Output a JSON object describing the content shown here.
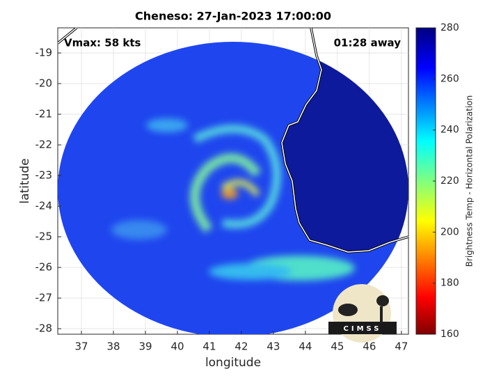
{
  "chart_data": {
    "type": "map",
    "title": "Cheneso: 27-Jan-2023 17:00:00",
    "xlabel": "longitude",
    "ylabel": "latitude",
    "annotations": [
      "Vmax: 58 kts",
      "01:28 away"
    ],
    "logo_text": "CIMSS",
    "xlim": [
      36.26,
      47.22
    ],
    "xticks": [
      37,
      38,
      39,
      40,
      41,
      42,
      43,
      44,
      45,
      46,
      47
    ],
    "ylim": [
      -28.18,
      -18.18
    ],
    "yticks": [
      -28,
      -27,
      -26,
      -25,
      -24,
      -23,
      -22,
      -21,
      -20,
      -19
    ],
    "grid": true,
    "colorbar": {
      "label": "Brightness Temp - Horizontal Polarization",
      "lim": [
        160,
        280
      ],
      "ticks": [
        160,
        180,
        200,
        220,
        240,
        260,
        280
      ]
    }
  }
}
